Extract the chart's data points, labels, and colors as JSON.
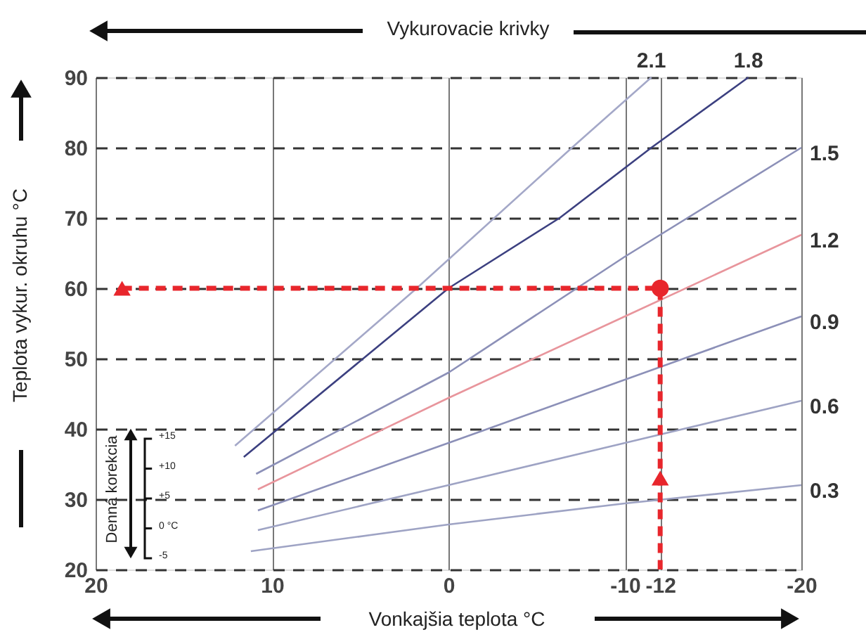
{
  "chart_data": {
    "type": "line",
    "title": "Vykurovacie krivky",
    "xlabel": "Vonkajšia teplota °C",
    "ylabel": "Teplota vykur. okruhu °C",
    "xlim": [
      20,
      -20
    ],
    "xticks": [
      20,
      10,
      0,
      -10,
      -12,
      -20
    ],
    "ylim": [
      20,
      90
    ],
    "yticks": [
      20,
      30,
      40,
      50,
      60,
      70,
      80,
      90
    ],
    "grid": true,
    "marker": "none",
    "line_style": "solid",
    "annotations": [
      "Denná korekcia",
      "+15",
      "+10",
      "+5",
      "0 °C",
      "-5"
    ],
    "series": [
      {
        "name": "0.3",
        "color": "#9ea3c4",
        "x": [
          11.2,
          0,
          -10,
          -20
        ],
        "values": [
          22.6,
          26.4,
          29.4,
          32
        ]
      },
      {
        "name": "0.6",
        "color": "#9ea3c4",
        "x": [
          10.8,
          0,
          -10,
          -20
        ],
        "values": [
          25.6,
          32,
          38,
          44
        ]
      },
      {
        "name": "0.9",
        "color": "#8c90b8",
        "x": [
          10.8,
          0,
          -10,
          -20
        ],
        "values": [
          28.4,
          38,
          47,
          56
        ]
      },
      {
        "name": "1.2",
        "color": "#e8959c",
        "x": [
          10.8,
          0,
          -10,
          -20
        ],
        "values": [
          31.4,
          44.4,
          56,
          67.6
        ]
      },
      {
        "name": "1.5",
        "color": "#8c90b8",
        "x": [
          10.9,
          0,
          -10,
          -20
        ],
        "values": [
          33.6,
          48,
          64.5,
          80
        ]
      },
      {
        "name": "1.8",
        "color": "#3c4080",
        "x": [
          11.6,
          0,
          -6.3,
          -11.5,
          -17
        ],
        "values": [
          36,
          60,
          70,
          80,
          90
        ]
      },
      {
        "name": "2.1",
        "color": "#a4a8c8",
        "x": [
          12.1,
          1.8,
          -7,
          -11.5
        ],
        "values": [
          37.6,
          60,
          80,
          90
        ]
      },
      {
        "type": "line",
        "color": "#e8262c",
        "line_style": "dashed",
        "x": [
          18.5,
          -12,
          -12
        ],
        "values": [
          60,
          60,
          20
        ]
      },
      {
        "type": "scatter",
        "color": "#e8262c",
        "marker": "circle",
        "x": [
          -12
        ],
        "values": [
          60
        ]
      },
      {
        "type": "scatter",
        "color": "#e8262c",
        "marker": "triangle",
        "x": [
          18.5,
          -12
        ],
        "values": [
          60,
          33
        ]
      }
    ]
  }
}
